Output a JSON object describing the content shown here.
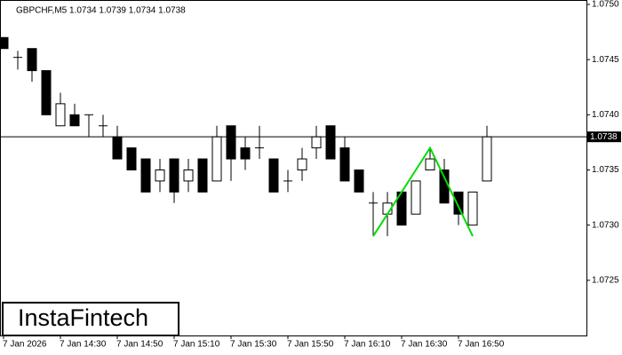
{
  "chart_data": {
    "type": "candlestick",
    "title": "GBPCHF,M5  1.0734 1.0739 1.0734 1.0738",
    "logo": "InstaFintech",
    "categories": [
      "7 Jan 2026",
      null,
      null,
      null,
      "7 Jan 14:30",
      null,
      null,
      null,
      "7 Jan 14:50",
      null,
      null,
      null,
      "7 Jan 15:10",
      null,
      null,
      null,
      "7 Jan 15:30",
      null,
      null,
      null,
      "7 Jan 15:50",
      null,
      null,
      null,
      "7 Jan 16:10",
      null,
      null,
      null,
      "7 Jan 16:30",
      null,
      null,
      null,
      "7 Jan 16:50",
      null,
      null
    ],
    "open": [
      1.0747,
      1.07452,
      1.0746,
      1.0744,
      1.0739,
      1.074,
      1.074,
      1.0739,
      1.0738,
      1.0737,
      1.0736,
      1.0734,
      1.0736,
      1.0734,
      1.0736,
      1.0734,
      1.0739,
      1.0737,
      1.0737,
      1.0736,
      1.0734,
      1.0735,
      1.0737,
      1.0739,
      1.0737,
      1.0735,
      1.0732,
      1.0731,
      1.0733,
      1.0731,
      1.0735,
      1.0735,
      1.0733,
      1.073,
      1.0734
    ],
    "high": [
      1.0747,
      1.07458,
      1.0746,
      1.0744,
      1.0742,
      1.0741,
      1.074,
      1.074,
      1.0739,
      1.0737,
      1.0736,
      1.0736,
      1.0736,
      1.0736,
      1.0736,
      1.0739,
      1.0739,
      1.0738,
      1.0739,
      1.0736,
      1.0735,
      1.0737,
      1.0739,
      1.0739,
      1.0738,
      1.0735,
      1.0733,
      1.0733,
      1.0733,
      1.0734,
      1.0737,
      1.0736,
      1.0733,
      1.0733,
      1.0739
    ],
    "low": [
      1.0746,
      1.07441,
      1.0743,
      1.074,
      1.0739,
      1.0739,
      1.0738,
      1.0738,
      1.0736,
      1.0735,
      1.0733,
      1.0733,
      1.0732,
      1.0733,
      1.0733,
      1.0734,
      1.0734,
      1.0735,
      1.0736,
      1.0733,
      1.0733,
      1.0734,
      1.0736,
      1.0736,
      1.0734,
      1.0733,
      1.0729,
      1.0729,
      1.073,
      1.0731,
      1.0735,
      1.0732,
      1.073,
      1.073,
      1.0734
    ],
    "close": [
      1.0746,
      1.07452,
      1.0744,
      1.074,
      1.0741,
      1.0739,
      1.074,
      1.0739,
      1.0736,
      1.0735,
      1.0733,
      1.0735,
      1.0733,
      1.0735,
      1.0733,
      1.0738,
      1.0736,
      1.0736,
      1.0737,
      1.0733,
      1.0734,
      1.0736,
      1.0738,
      1.0736,
      1.0734,
      1.0733,
      1.0732,
      1.0732,
      1.073,
      1.0734,
      1.0736,
      1.0732,
      1.0731,
      1.0733,
      1.0738
    ],
    "up_color": "#ffffff",
    "down_color": "#000000",
    "ylim": [
      1.072,
      1.07504
    ],
    "yticks": [
      1.0725,
      {
        "value": 1.073,
        "label": "1.0730"
      },
      1.0735,
      {
        "value": 1.074,
        "label": "1.0740"
      },
      1.0745,
      {
        "value": 1.075,
        "label": "1.0750"
      }
    ],
    "last_price": 1.0738,
    "pattern": {
      "color": "#00dd00",
      "points": [
        {
          "x": 26,
          "y": 1.0729
        },
        {
          "x": 30,
          "y": 1.0737
        },
        {
          "x": 33,
          "y": 1.0729
        }
      ]
    }
  }
}
